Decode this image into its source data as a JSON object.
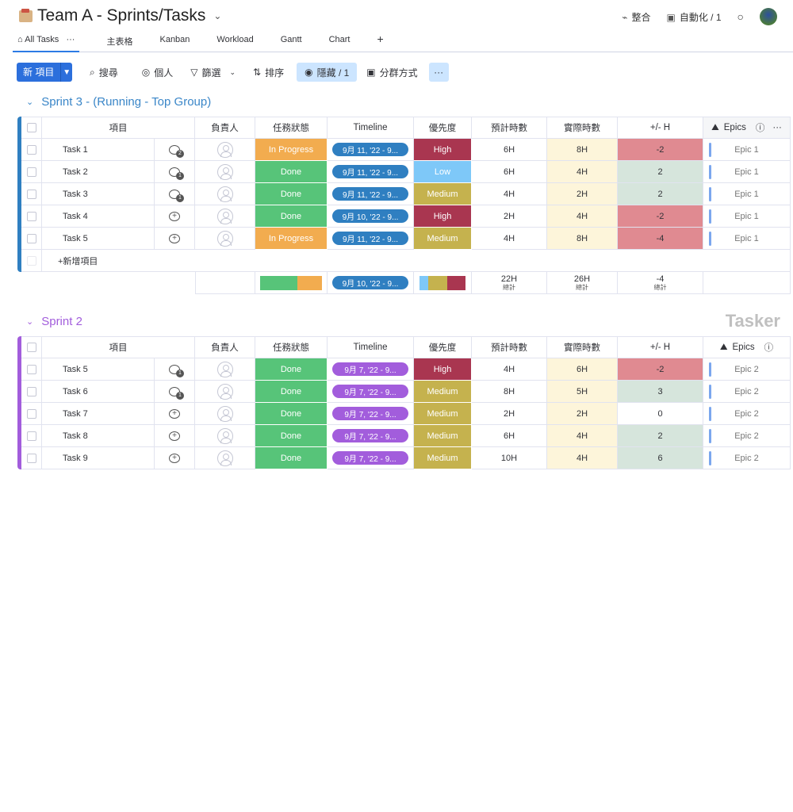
{
  "header": {
    "title": "Team A - Sprints/Tasks",
    "integrate": "整合",
    "automation": "自動化 / 1"
  },
  "tabs": [
    {
      "label": "All Tasks",
      "active": true
    },
    {
      "label": "主表格"
    },
    {
      "label": "Kanban"
    },
    {
      "label": "Workload"
    },
    {
      "label": "Gantt"
    },
    {
      "label": "Chart"
    }
  ],
  "tab_more": "···",
  "tab_add": "+",
  "toolbar": {
    "new_item": "新 項目",
    "search": "搜尋",
    "person": "個人",
    "filter": "篩選",
    "sort": "排序",
    "hide": "隱藏 / 1",
    "group_by": "分群方式",
    "more": "···"
  },
  "columns": {
    "item": "項目",
    "owner": "負責人",
    "status": "任務狀態",
    "timeline": "Timeline",
    "priority": "優先度",
    "est": "預計時數",
    "actual": "實際時數",
    "diff": "+/- H",
    "epics": "Epics"
  },
  "colors": {
    "In Progress": "#f2ac4f",
    "Done": "#57c479",
    "High": "#a93650",
    "Low": "#7ec8f8",
    "Medium": "#c5b24e",
    "diff_neg": "#e08a91",
    "diff_pos": "#d6e5dc",
    "actual_bg": "#fdf5da"
  },
  "groups": [
    {
      "title": "Sprint 3 - (Running - Top Group)",
      "color": "#2f7fc1",
      "title_color": "#3a86c8",
      "rows": [
        {
          "name": "Task 1",
          "comments": "2",
          "status": "In Progress",
          "timeline": "9月 11, '22 - 9...",
          "priority": "High",
          "est": "6H",
          "actual": "8H",
          "diff": "-2",
          "epic": "Epic 1"
        },
        {
          "name": "Task 2",
          "comments": "1",
          "status": "Done",
          "timeline": "9月 11, '22 - 9...",
          "priority": "Low",
          "est": "6H",
          "actual": "4H",
          "diff": "2",
          "epic": "Epic 1"
        },
        {
          "name": "Task 3",
          "comments": "1",
          "status": "Done",
          "timeline": "9月 11, '22 - 9...",
          "priority": "Medium",
          "est": "4H",
          "actual": "2H",
          "diff": "2",
          "epic": "Epic 1"
        },
        {
          "name": "Task 4",
          "comments": "",
          "status": "Done",
          "timeline": "9月 10, '22 - 9...",
          "priority": "High",
          "est": "2H",
          "actual": "4H",
          "diff": "-2",
          "epic": "Epic 1"
        },
        {
          "name": "Task 5",
          "comments": "",
          "status": "In Progress",
          "timeline": "9月 11, '22 - 9...",
          "priority": "Medium",
          "est": "4H",
          "actual": "8H",
          "diff": "-4",
          "epic": "Epic 1"
        }
      ],
      "add_item": "+新增項目",
      "summary": {
        "status_dist": [
          {
            "label": "Done",
            "pct": 60
          },
          {
            "label": "In Progress",
            "pct": 40
          }
        ],
        "timeline": "9月 10, '22 - 9...",
        "priority_dist": [
          {
            "label": "Low",
            "pct": 20
          },
          {
            "label": "Medium",
            "pct": 40
          },
          {
            "label": "High",
            "pct": 40
          }
        ],
        "est": "22H",
        "actual": "26H",
        "diff": "-4",
        "total_label": "總計"
      }
    },
    {
      "title": "Sprint 2",
      "color": "#a25ddc",
      "title_color": "#a25ddc",
      "rows": [
        {
          "name": "Task 5",
          "comments": "1",
          "status": "Done",
          "timeline": "9月 7, '22 - 9...",
          "priority": "High",
          "est": "4H",
          "actual": "6H",
          "diff": "-2",
          "epic": "Epic 2"
        },
        {
          "name": "Task 6",
          "comments": "1",
          "status": "Done",
          "timeline": "9月 7, '22 - 9...",
          "priority": "Medium",
          "est": "8H",
          "actual": "5H",
          "diff": "3",
          "epic": "Epic 2"
        },
        {
          "name": "Task 7",
          "comments": "",
          "status": "Done",
          "timeline": "9月 7, '22 - 9...",
          "priority": "Medium",
          "est": "2H",
          "actual": "2H",
          "diff": "0",
          "epic": "Epic 2"
        },
        {
          "name": "Task 8",
          "comments": "",
          "status": "Done",
          "timeline": "9月 7, '22 - 9...",
          "priority": "Medium",
          "est": "6H",
          "actual": "4H",
          "diff": "2",
          "epic": "Epic 2"
        },
        {
          "name": "Task 9",
          "comments": "",
          "status": "Done",
          "timeline": "9月 7, '22 - 9...",
          "priority": "Medium",
          "est": "10H",
          "actual": "4H",
          "diff": "6",
          "epic": "Epic 2"
        }
      ]
    }
  ],
  "watermark": "Tasker"
}
